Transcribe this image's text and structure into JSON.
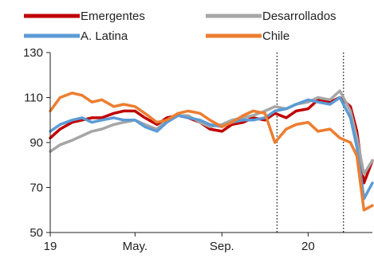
{
  "chart_data": {
    "type": "line",
    "title": "",
    "xlabel": "",
    "ylabel": "",
    "ylim": [
      50,
      130
    ],
    "yticks": [
      50,
      70,
      90,
      110,
      130
    ],
    "xlim": [
      "2019-01-01",
      "2020-04-01"
    ],
    "xticks": [
      {
        "date": "2019-01-01",
        "label": "19"
      },
      {
        "date": "2019-05-01",
        "label": "May."
      },
      {
        "date": "2019-09-01",
        "label": "Sep."
      },
      {
        "date": "2020-01-01",
        "label": "20"
      }
    ],
    "vertical_markers": [
      "2019-11-18",
      "2020-02-20"
    ],
    "legend_position": "top",
    "series": [
      {
        "name": "Emergentes",
        "color": "#c00000",
        "x": [
          "2019-01-01",
          "2019-01-15",
          "2019-02-01",
          "2019-02-15",
          "2019-03-01",
          "2019-03-15",
          "2019-04-01",
          "2019-04-15",
          "2019-05-01",
          "2019-05-15",
          "2019-06-01",
          "2019-06-15",
          "2019-07-01",
          "2019-07-15",
          "2019-08-01",
          "2019-08-15",
          "2019-09-01",
          "2019-09-15",
          "2019-10-01",
          "2019-10-15",
          "2019-11-01",
          "2019-11-15",
          "2019-12-01",
          "2019-12-15",
          "2020-01-01",
          "2020-01-15",
          "2020-02-01",
          "2020-02-15",
          "2020-03-01",
          "2020-03-10",
          "2020-03-20",
          "2020-04-01"
        ],
        "values": [
          92,
          96,
          99,
          100,
          101,
          101,
          103,
          104,
          104,
          101,
          98,
          101,
          102,
          101,
          99,
          96,
          95,
          98,
          99,
          101,
          100,
          103,
          101,
          104,
          105,
          109,
          108,
          110,
          106,
          95,
          72,
          82
        ]
      },
      {
        "name": "Desarrollados",
        "color": "#a6a6a6",
        "x": [
          "2019-01-01",
          "2019-01-15",
          "2019-02-01",
          "2019-02-15",
          "2019-03-01",
          "2019-03-15",
          "2019-04-01",
          "2019-04-15",
          "2019-05-01",
          "2019-05-15",
          "2019-06-01",
          "2019-06-15",
          "2019-07-01",
          "2019-07-15",
          "2019-08-01",
          "2019-08-15",
          "2019-09-01",
          "2019-09-15",
          "2019-10-01",
          "2019-10-15",
          "2019-11-01",
          "2019-11-15",
          "2019-12-01",
          "2019-12-15",
          "2020-01-01",
          "2020-01-15",
          "2020-02-01",
          "2020-02-15",
          "2020-03-01",
          "2020-03-10",
          "2020-03-20",
          "2020-04-01"
        ],
        "values": [
          86,
          89,
          91,
          93,
          95,
          96,
          98,
          99,
          100,
          98,
          96,
          100,
          102,
          102,
          99,
          97,
          98,
          100,
          101,
          102,
          104,
          106,
          105,
          107,
          108,
          110,
          109,
          113,
          104,
          92,
          76,
          82
        ]
      },
      {
        "name": "A. Latina",
        "color": "#5b9bd5",
        "x": [
          "2019-01-01",
          "2019-01-15",
          "2019-02-01",
          "2019-02-15",
          "2019-03-01",
          "2019-03-15",
          "2019-04-01",
          "2019-04-15",
          "2019-05-01",
          "2019-05-15",
          "2019-06-01",
          "2019-06-15",
          "2019-07-01",
          "2019-07-15",
          "2019-08-01",
          "2019-08-15",
          "2019-09-01",
          "2019-09-15",
          "2019-10-01",
          "2019-10-15",
          "2019-11-01",
          "2019-11-15",
          "2019-12-01",
          "2019-12-15",
          "2020-01-01",
          "2020-01-15",
          "2020-02-01",
          "2020-02-15",
          "2020-03-01",
          "2020-03-10",
          "2020-03-20",
          "2020-04-01"
        ],
        "values": [
          95,
          98,
          100,
          101,
          99,
          100,
          101,
          100,
          100,
          97,
          95,
          99,
          102,
          101,
          100,
          98,
          97,
          99,
          100,
          100,
          101,
          104,
          105,
          107,
          109,
          108,
          107,
          110,
          101,
          88,
          65,
          72
        ]
      },
      {
        "name": "Chile",
        "color": "#ed7d31",
        "x": [
          "2019-01-01",
          "2019-01-15",
          "2019-02-01",
          "2019-02-15",
          "2019-03-01",
          "2019-03-15",
          "2019-04-01",
          "2019-04-15",
          "2019-05-01",
          "2019-05-15",
          "2019-06-01",
          "2019-06-15",
          "2019-07-01",
          "2019-07-15",
          "2019-08-01",
          "2019-08-15",
          "2019-09-01",
          "2019-09-15",
          "2019-10-01",
          "2019-10-15",
          "2019-11-01",
          "2019-11-15",
          "2019-12-01",
          "2019-12-15",
          "2020-01-01",
          "2020-01-15",
          "2020-02-01",
          "2020-02-15",
          "2020-03-01",
          "2020-03-10",
          "2020-03-20",
          "2020-04-01"
        ],
        "values": [
          104,
          110,
          112,
          111,
          108,
          109,
          106,
          107,
          106,
          103,
          99,
          100,
          103,
          104,
          103,
          100,
          97,
          99,
          102,
          104,
          103,
          90,
          96,
          98,
          99,
          95,
          96,
          92,
          90,
          84,
          60,
          62
        ]
      }
    ]
  }
}
